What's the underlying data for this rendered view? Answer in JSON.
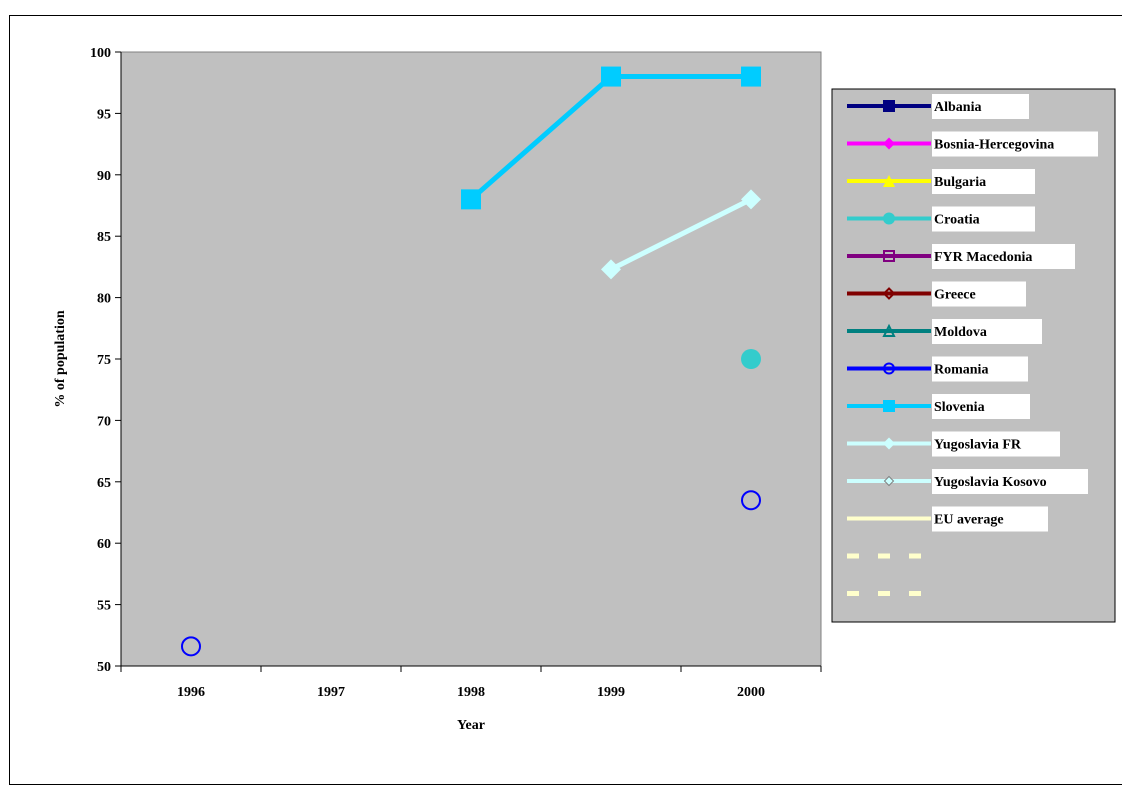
{
  "chart_data": {
    "type": "line",
    "title": "",
    "xlabel": "Year",
    "ylabel": "% of population",
    "categories": [
      "1996",
      "1997",
      "1998",
      "1999",
      "2000"
    ],
    "ylim": [
      50,
      100
    ],
    "yticks": [
      50,
      55,
      60,
      65,
      70,
      75,
      80,
      85,
      90,
      95,
      100
    ],
    "grid": false,
    "plot_background": "#c0c0c0",
    "legend_background": "#c0c0c0",
    "legend_position": "right",
    "series": [
      {
        "name": "Albania",
        "color": "#000080",
        "marker": "square",
        "values": [
          null,
          null,
          null,
          null,
          null
        ]
      },
      {
        "name": "Bosnia-Hercegovina",
        "color": "#ff00ff",
        "marker": "diamond",
        "values": [
          null,
          null,
          null,
          null,
          null
        ]
      },
      {
        "name": "Bulgaria",
        "color": "#ffff00",
        "marker": "triangle",
        "values": [
          null,
          null,
          null,
          null,
          null
        ]
      },
      {
        "name": "Croatia",
        "color": "#33cccc",
        "marker": "circle",
        "values": [
          null,
          null,
          null,
          null,
          75
        ]
      },
      {
        "name": "FYR Macedonia",
        "color": "#800080",
        "marker": "square-open",
        "values": [
          null,
          null,
          null,
          null,
          null
        ]
      },
      {
        "name": "Greece",
        "color": "#800000",
        "marker": "diamond-open",
        "values": [
          null,
          null,
          null,
          null,
          null
        ]
      },
      {
        "name": "Moldova",
        "color": "#008080",
        "marker": "triangle-open",
        "values": [
          null,
          null,
          null,
          null,
          null
        ]
      },
      {
        "name": "Romania",
        "color": "#0000ff",
        "marker": "circle-open",
        "values": [
          51.6,
          null,
          null,
          null,
          63.5
        ]
      },
      {
        "name": "Slovenia",
        "color": "#00ccff",
        "marker": "square",
        "values": [
          null,
          null,
          88,
          98,
          98
        ]
      },
      {
        "name": "Yugoslavia FR",
        "color": "#ccffff",
        "marker": "diamond",
        "values": [
          null,
          null,
          null,
          82.3,
          88
        ]
      },
      {
        "name": "Yugoslavia Kosovo",
        "color": "#ccffff",
        "marker": "diamond-small",
        "values": [
          null,
          null,
          null,
          null,
          null
        ]
      },
      {
        "name": "EU average",
        "color": "#ffffcc",
        "marker": "none",
        "values": [
          null,
          null,
          null,
          null,
          null
        ]
      },
      {
        "name": "",
        "color": "#ffffcc",
        "marker": "dashed",
        "values": [
          null,
          null,
          null,
          null,
          null
        ]
      },
      {
        "name": "",
        "color": "#ffffcc",
        "marker": "dashed",
        "values": [
          null,
          null,
          null,
          null,
          null
        ]
      }
    ]
  }
}
